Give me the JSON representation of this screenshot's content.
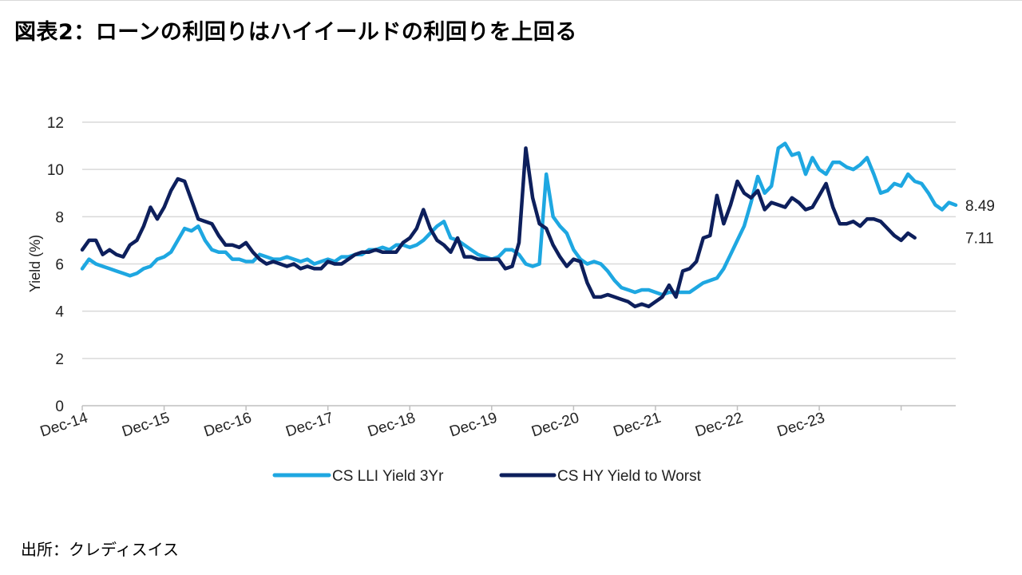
{
  "page": {
    "title": "図表2：ローンの利回りはハイイールドの利回りを上回る",
    "source": "出所：クレディスイス"
  },
  "chart_data": {
    "type": "line",
    "ylabel": "Yield (%)",
    "ylim": [
      0,
      12
    ],
    "yticks": [
      0,
      2,
      4,
      6,
      8,
      10,
      12
    ],
    "x_start": "2014-12",
    "x_end": "2024-12",
    "xticks": [
      "Dec-14",
      "Dec-15",
      "Dec-16",
      "Dec-17",
      "Dec-18",
      "Dec-19",
      "Dec-20",
      "Dec-21",
      "Dec-22",
      "Dec-23"
    ],
    "grid": true,
    "legend": "bottom",
    "series": [
      {
        "name": "CS LLI Yield 3Yr",
        "color": "#1EA7E1",
        "end_label": "8.49",
        "values": [
          5.8,
          6.2,
          6.0,
          5.9,
          5.8,
          5.7,
          5.6,
          5.5,
          5.6,
          5.8,
          5.9,
          6.2,
          6.3,
          6.5,
          7.0,
          7.5,
          7.4,
          7.6,
          7.0,
          6.6,
          6.5,
          6.5,
          6.2,
          6.2,
          6.1,
          6.1,
          6.4,
          6.3,
          6.2,
          6.2,
          6.3,
          6.2,
          6.1,
          6.2,
          6.0,
          6.1,
          6.2,
          6.1,
          6.3,
          6.3,
          6.4,
          6.4,
          6.6,
          6.6,
          6.7,
          6.6,
          6.8,
          6.8,
          6.7,
          6.8,
          7.0,
          7.3,
          7.6,
          7.8,
          7.1,
          7.0,
          6.8,
          6.6,
          6.4,
          6.3,
          6.2,
          6.3,
          6.6,
          6.6,
          6.4,
          6.0,
          5.9,
          6.0,
          9.8,
          8.0,
          7.6,
          7.3,
          6.6,
          6.2,
          6.0,
          6.1,
          6.0,
          5.7,
          5.3,
          5.0,
          4.9,
          4.8,
          4.9,
          4.9,
          4.8,
          4.7,
          4.8,
          4.8,
          4.8,
          4.8,
          5.0,
          5.2,
          5.3,
          5.4,
          5.8,
          6.4,
          7.0,
          7.6,
          8.6,
          9.7,
          9.0,
          9.3,
          10.9,
          11.1,
          10.6,
          10.7,
          9.8,
          10.5,
          10.0,
          9.8,
          10.3,
          10.3,
          10.1,
          10.0,
          10.2,
          10.5,
          9.8,
          9.0,
          9.1,
          9.4,
          9.3,
          9.8,
          9.5,
          9.4,
          9.0,
          8.5,
          8.3,
          8.6,
          8.49
        ]
      },
      {
        "name": "CS HY Yield to Worst",
        "color": "#0D1F5C",
        "end_label": "7.11",
        "values": [
          6.6,
          7.0,
          7.0,
          6.4,
          6.6,
          6.4,
          6.3,
          6.8,
          7.0,
          7.6,
          8.4,
          7.9,
          8.4,
          9.1,
          9.6,
          9.5,
          8.7,
          7.9,
          7.8,
          7.7,
          7.2,
          6.8,
          6.8,
          6.7,
          6.9,
          6.5,
          6.2,
          6.0,
          6.1,
          6.0,
          5.9,
          6.0,
          5.8,
          5.9,
          5.8,
          5.8,
          6.1,
          6.0,
          6.0,
          6.2,
          6.4,
          6.5,
          6.5,
          6.6,
          6.5,
          6.5,
          6.5,
          6.9,
          7.1,
          7.5,
          8.3,
          7.5,
          7.0,
          6.8,
          6.5,
          7.1,
          6.3,
          6.3,
          6.2,
          6.2,
          6.2,
          6.2,
          5.8,
          5.9,
          6.9,
          10.9,
          8.8,
          7.7,
          7.5,
          6.8,
          6.3,
          5.9,
          6.2,
          6.1,
          5.2,
          4.6,
          4.6,
          4.7,
          4.6,
          4.5,
          4.4,
          4.2,
          4.3,
          4.2,
          4.4,
          4.6,
          5.1,
          4.6,
          5.7,
          5.8,
          6.1,
          7.1,
          7.2,
          8.9,
          7.7,
          8.5,
          9.5,
          9.0,
          8.8,
          9.1,
          8.3,
          8.6,
          8.5,
          8.4,
          8.8,
          8.6,
          8.3,
          8.4,
          8.9,
          9.4,
          8.4,
          7.7,
          7.7,
          7.8,
          7.6,
          7.9,
          7.9,
          7.8,
          7.5,
          7.2,
          7.0,
          7.3,
          7.11
        ]
      }
    ]
  }
}
